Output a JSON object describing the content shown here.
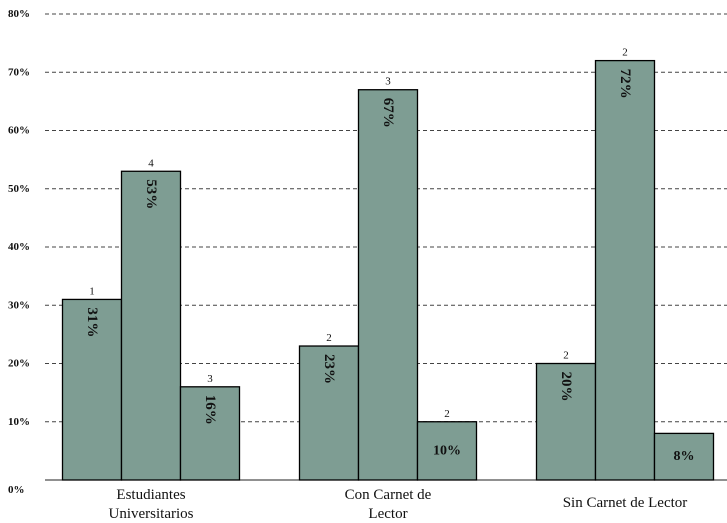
{
  "chart_data": {
    "type": "bar",
    "categories": [
      "Estudiantes Universitarios",
      "Con Carnet de Lector",
      "Sin Carnet de Lector"
    ],
    "series": [
      {
        "values": [
          31,
          23,
          20
        ],
        "data_labels": [
          "31%",
          "23%",
          "20%"
        ],
        "top_labels": [
          "1",
          "2",
          "2"
        ]
      },
      {
        "values": [
          53,
          67,
          72
        ],
        "data_labels": [
          "53%",
          "67%",
          "72%"
        ],
        "top_labels": [
          "4",
          "3",
          "2"
        ]
      },
      {
        "values": [
          16,
          10,
          8
        ],
        "data_labels": [
          "16%",
          "10%",
          "8%"
        ],
        "top_labels": [
          "3",
          "2",
          null
        ]
      }
    ],
    "ylim": [
      0,
      80
    ],
    "yticks": [
      0,
      10,
      20,
      30,
      40,
      50,
      60,
      70,
      80
    ],
    "ytick_labels": [
      "0%",
      "10%",
      "20%",
      "30%",
      "40%",
      "50%",
      "60%",
      "70%",
      "80%"
    ],
    "grid": true,
    "legend": false,
    "colors": {
      "bar": "#7e9d93",
      "bar_edge": "#000000",
      "grid": "#444444",
      "axis": "#222222"
    }
  }
}
